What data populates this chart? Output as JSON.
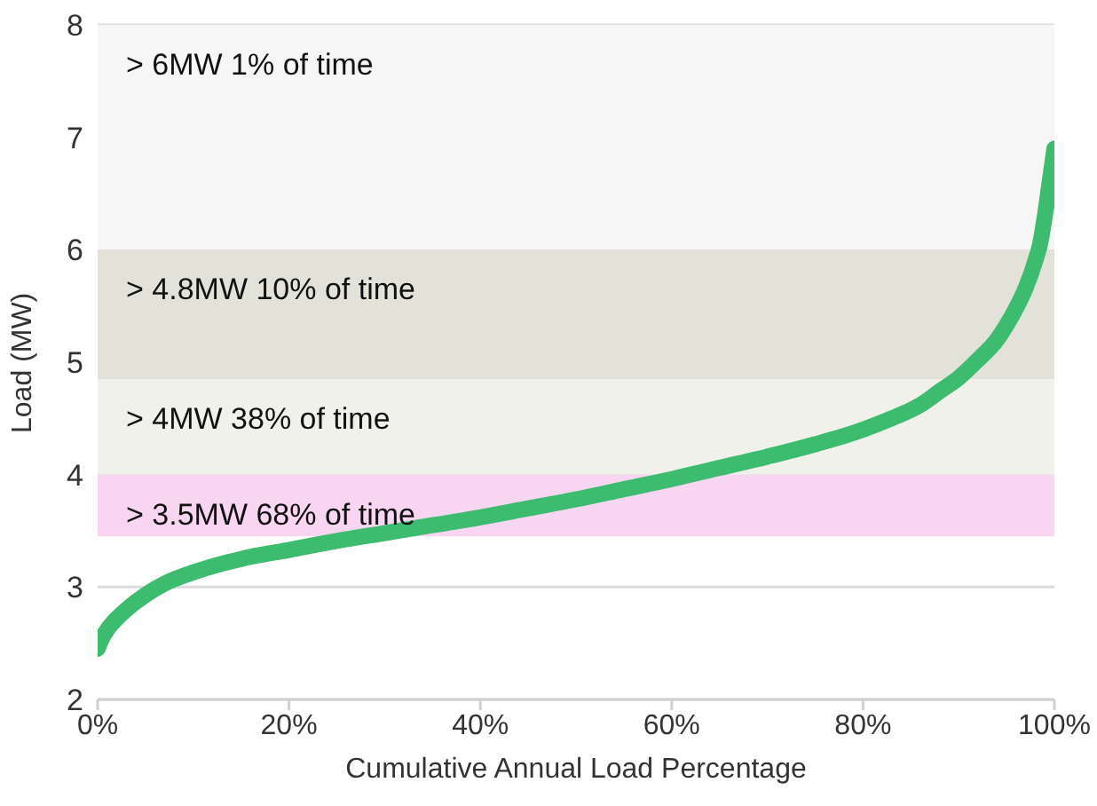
{
  "chart_data": {
    "type": "line",
    "xlabel": "Cumulative Annual Load Percentage",
    "ylabel": "Load (MW)",
    "x": [
      0,
      0.5,
      1,
      2,
      3,
      5,
      7,
      10,
      15,
      20,
      25,
      30,
      35,
      40,
      45,
      50,
      55,
      60,
      65,
      70,
      75,
      80,
      83,
      86,
      88,
      90,
      92,
      94,
      95,
      96,
      97,
      98,
      98.5,
      99,
      99.5,
      100
    ],
    "series": [
      {
        "color": "#3dbb6e",
        "values": [
          2.45,
          2.55,
          2.62,
          2.72,
          2.8,
          2.93,
          3.03,
          3.13,
          3.25,
          3.33,
          3.41,
          3.48,
          3.55,
          3.62,
          3.7,
          3.78,
          3.87,
          3.96,
          4.06,
          4.16,
          4.27,
          4.4,
          4.5,
          4.62,
          4.74,
          4.86,
          5.02,
          5.2,
          5.33,
          5.48,
          5.66,
          5.9,
          6.05,
          6.3,
          6.6,
          6.9
        ]
      }
    ],
    "xlim": [
      0,
      100
    ],
    "xticks": [
      {
        "value": 0,
        "label": "0%"
      },
      {
        "value": 20,
        "label": "20%"
      },
      {
        "value": 40,
        "label": "40%"
      },
      {
        "value": 60,
        "label": "60%"
      },
      {
        "value": 80,
        "label": "80%"
      },
      {
        "value": 100,
        "label": "100%"
      }
    ],
    "ylim": [
      2,
      8
    ],
    "yticks": [
      2,
      3,
      4,
      5,
      6,
      7,
      8
    ],
    "grid": "y",
    "marker": "none",
    "line_style": "solid",
    "legend": false,
    "bands": [
      {
        "axis": "y",
        "from": 6,
        "to": 8,
        "label": "> 6MW 1% of time",
        "color": "#f6f6f6"
      },
      {
        "axis": "y",
        "from": 4.85,
        "to": 6,
        "label": "> 4.8MW 10% of time",
        "color": "#e3e2d8"
      },
      {
        "axis": "y",
        "from": 4,
        "to": 4.85,
        "label": "> 4MW 38% of time",
        "color": "#f1f1ec"
      },
      {
        "axis": "y",
        "from": 3.45,
        "to": 4,
        "label": "> 3.5MW 68% of time",
        "color": "#f8d6f2"
      }
    ]
  }
}
